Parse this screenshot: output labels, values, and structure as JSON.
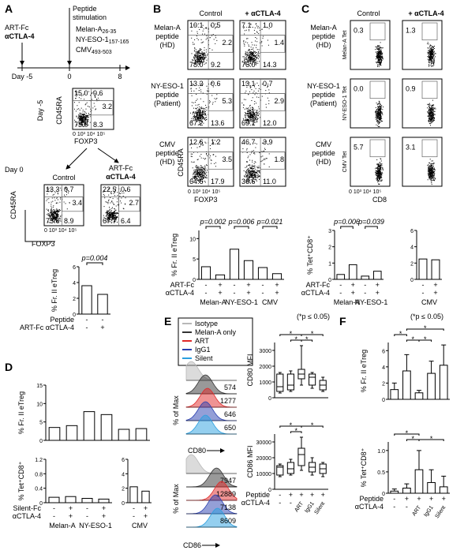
{
  "figure": {
    "letters": [
      "A",
      "B",
      "C",
      "D",
      "E",
      "F"
    ],
    "A": {
      "left_labels": [
        "ART-Fc",
        "αCTLA-4"
      ],
      "stim": [
        "Peptide",
        "stimulation"
      ],
      "peptides": [
        {
          "name": "Melan-A",
          "sub": "26-35"
        },
        {
          "name": "NY-ESO-1",
          "sub": "157-165"
        },
        {
          "name": "CMV",
          "sub": "493-503"
        }
      ],
      "days": [
        "Day -5",
        "0",
        "8"
      ],
      "day5_label": "Day -5",
      "day0_label": "Day 0",
      "plot_heads": [
        "Control",
        "ART-Fc",
        "αCTLA-4"
      ],
      "plots": [
        [
          "15.0",
          "0.6",
          "3.2",
          "73.0",
          "8.3"
        ],
        [
          "13.3",
          "0.7",
          "3.4",
          "73.6",
          "8.9"
        ],
        [
          "22.5",
          "0.6",
          "2.7",
          "67.7",
          "6.4"
        ]
      ],
      "y_axis": "CD45RA",
      "x_axis": "FOXP3",
      "axis_ticks": "0 10³ 10⁴ 10⁵"
    },
    "B": {
      "heads": [
        "Control",
        "+ αCTLA-4"
      ],
      "rows": [
        [
          "Melan-A",
          "peptide",
          "(HD)"
        ],
        [
          "NY-ESO-1",
          "peptide",
          "(Patient)"
        ],
        [
          "CMV",
          "peptide",
          "(HD)"
        ]
      ],
      "plots": [
        [
          [
            "10.1",
            "0.5",
            "2.2",
            "78.0",
            "9.2"
          ],
          [
            "7.1",
            "1.0",
            "1.4",
            "76.0",
            "14.3"
          ]
        ],
        [
          [
            "13.2",
            "0.6",
            "5.3",
            "67.2",
            "13.6"
          ],
          [
            "13.1",
            "0.7",
            "2.9",
            "69.1",
            "12.0"
          ]
        ],
        [
          [
            "12.6",
            "1.2",
            "3.5",
            "64.6",
            "17.9"
          ],
          [
            "46.7",
            "3.9",
            "1.8",
            "36.6",
            "11.0"
          ]
        ]
      ],
      "y_axis": "CD45RA",
      "x_axis": "FOXP3",
      "axis_ticks": "0 10³ 10⁴ 10⁵"
    },
    "C": {
      "heads": [
        "Control",
        "+ αCTLA-4"
      ],
      "rows": [
        [
          "Melan-A",
          "peptide",
          "(HD)"
        ],
        [
          "NY-ESO-1",
          "peptide",
          "(Patient)"
        ],
        [
          "CMV",
          "peptide",
          "(HD)"
        ]
      ],
      "plots": [
        [
          "0.3",
          "1.3"
        ],
        [
          "0.0",
          "0.9"
        ],
        [
          "5.7",
          "3.1"
        ]
      ],
      "y_axes": [
        "Melan-A Tet",
        "NY-ESO-1 Tet",
        "CMV Tet"
      ],
      "x_axis": "CD8",
      "axis_ticks": "0 10³ 10⁴ 10⁵"
    },
    "E": {
      "legend": [
        {
          "name": "Isotype",
          "color": "#b8b8b8"
        },
        {
          "name": "Melan-A only",
          "color": "#333333"
        },
        {
          "name": "ART",
          "color": "#e02828"
        },
        {
          "name": "IgG1",
          "color": "#2a3fb0"
        },
        {
          "name": "Silent",
          "color": "#2a9fe0"
        }
      ],
      "hist_y": "% of Max",
      "cd80": [
        "574",
        "1277",
        "646",
        "650"
      ],
      "cd86": [
        "7947",
        "12889",
        "7138",
        "8609"
      ],
      "cd80_axis": "CD80",
      "cd86_axis": "CD86",
      "note": "(*p ≤ 0.05)"
    },
    "F": {
      "note": "(*p ≤ 0.05)"
    }
  },
  "chart_data": [
    {
      "type": "bar",
      "y_label": "% Fr. II eTreg",
      "values": [
        3.6,
        2.5
      ],
      "color": "#ffffff",
      "ylim": [
        0,
        6
      ],
      "yticks": [
        0,
        2,
        4,
        6
      ],
      "annotations": [
        "p=0.004"
      ],
      "rows": [
        {
          "name": "Peptide",
          "marks": [
            "-",
            "-"
          ]
        },
        {
          "name": "ART-Fc αCTLA-4",
          "marks": [
            "-",
            "+"
          ]
        }
      ]
    },
    {
      "type": "bar",
      "y_label": "% Fr. II eTreg",
      "values": [
        3.1,
        1.1,
        7.4,
        4.6,
        2.9,
        1.4
      ],
      "color": "#ffffff",
      "ylim": [
        0,
        12
      ],
      "yticks": [
        0,
        5,
        10
      ],
      "annotations": [
        "p=0.002",
        "p=0.006",
        "p=0.021"
      ],
      "rows": [
        {
          "name": "ART-Fc",
          "marks": [
            "-",
            "+",
            "-",
            "+",
            "-",
            "+"
          ]
        },
        {
          "name": "αCTLA-4",
          "marks": [
            "-",
            "+",
            "-",
            "+",
            "-",
            "+"
          ]
        }
      ],
      "groups": [
        "Melan-A",
        "NY-ESO-1",
        "CMV"
      ]
    },
    {
      "type": "bar",
      "y_label": "% Tet⁺CD8⁺",
      "values": [
        0.3,
        0.9,
        0.2,
        0.5
      ],
      "color": "#ffffff",
      "ylim": [
        0,
        3
      ],
      "yticks": [
        0,
        1,
        2,
        3
      ],
      "annotations": [
        "p=0.006",
        "p=0.039"
      ],
      "rows": [
        {
          "name": "ART-Fc",
          "marks": [
            "-",
            "+",
            "-",
            "+"
          ]
        },
        {
          "name": "αCTLA-4",
          "marks": [
            "-",
            "+",
            "-",
            "+"
          ]
        }
      ],
      "groups": [
        "Melan-A",
        "NY-ESO-1"
      ]
    },
    {
      "type": "bar",
      "values": [
        2.5,
        2.4
      ],
      "color": "#ffffff",
      "ylim": [
        0,
        6
      ],
      "yticks": [
        0,
        2,
        4,
        6
      ],
      "rows": [
        {
          "marks": [
            "-",
            "+"
          ]
        },
        {
          "marks": [
            "-",
            "+"
          ]
        }
      ],
      "groups": [
        "CMV"
      ]
    },
    {
      "type": "bar",
      "y_label": "% Fr. II eTreg",
      "values": [
        3.5,
        4.0,
        7.8,
        7.0,
        3.0,
        3.2
      ],
      "color": "#ffffff",
      "ylim": [
        0,
        15
      ],
      "yticks": [
        0,
        5,
        10,
        15
      ]
    },
    {
      "type": "bar",
      "y_label": "% Tet⁺CD8⁺",
      "values": [
        0.15,
        0.17,
        0.12,
        0.1
      ],
      "color": "#ffffff",
      "ylim": [
        0,
        1.2
      ],
      "yticks": [
        0,
        0.4,
        0.8,
        1.2
      ],
      "rows": [
        {
          "name": "Silent-Fc",
          "marks": [
            "-",
            "+",
            "-",
            "+"
          ]
        },
        {
          "name": "αCTLA-4",
          "marks": [
            "-",
            "+",
            "-",
            "+"
          ]
        }
      ],
      "groups": [
        "Melan-A",
        "NY-ESO-1"
      ]
    },
    {
      "type": "bar",
      "values": [
        2.2,
        1.6
      ],
      "color": "#ffffff",
      "ylim": [
        0,
        6
      ],
      "yticks": [
        0,
        2,
        4,
        6
      ],
      "rows": [
        {
          "marks": [
            "-",
            "+"
          ]
        },
        {
          "marks": [
            "-",
            "+"
          ]
        }
      ],
      "groups": [
        "CMV"
      ]
    },
    {
      "type": "box",
      "y_label": "CD80 MFI",
      "color": "#ffffff",
      "ylim": [
        0,
        3500
      ],
      "yticks": [
        0,
        1000,
        2000,
        3000
      ],
      "sig_mark": "*",
      "boxes": [
        [
          300,
          400,
          700,
          1500,
          1600
        ],
        [
          400,
          500,
          800,
          1500,
          1700
        ],
        [
          800,
          1200,
          1500,
          1800,
          3300
        ],
        [
          600,
          800,
          1300,
          1500,
          1600
        ],
        [
          400,
          500,
          800,
          1100,
          1300
        ]
      ]
    },
    {
      "type": "box",
      "y_label": "CD86 MFI",
      "color": "#ffffff",
      "ylim": [
        0,
        35000
      ],
      "yticks": [
        0,
        10000,
        20000,
        30000
      ],
      "sig_mark": "*",
      "boxes": [
        [
          8000,
          9000,
          14000,
          15000,
          16000
        ],
        [
          9000,
          10000,
          13000,
          17000,
          19000
        ],
        [
          12000,
          15000,
          22000,
          26000,
          33000
        ],
        [
          9000,
          11000,
          14000,
          17000,
          20000
        ],
        [
          8000,
          10000,
          13000,
          16000,
          17000
        ]
      ],
      "rows": [
        {
          "name": "Peptide",
          "marks": [
            "-",
            "+",
            "+",
            "+",
            "+"
          ]
        },
        {
          "name": "αCTLA-4",
          "marks": [
            "-",
            "-",
            "ART",
            "IgG1",
            "Silent"
          ]
        }
      ]
    },
    {
      "type": "bar",
      "y_label": "% Fr. II eTreg",
      "values": [
        1.2,
        3.5,
        0.8,
        3.2,
        4.2
      ],
      "errors": [
        0.8,
        2.0,
        0.3,
        1.5,
        2.5
      ],
      "color": "#ffffff",
      "ylim": [
        0,
        7
      ],
      "yticks": [
        0,
        2,
        4,
        6
      ],
      "sig_mark": "*"
    },
    {
      "type": "bar",
      "y_label": "% Tet⁺CD8⁺",
      "values": [
        0.05,
        0.12,
        0.55,
        0.25,
        0.15
      ],
      "errors": [
        0.05,
        0.1,
        0.45,
        0.3,
        0.25
      ],
      "color": "#ffffff",
      "ylim": [
        0,
        1.2
      ],
      "yticks": [
        0,
        0.5,
        {
          "value": 1,
          "label": "1.0"
        }
      ],
      "sig_mark": "*",
      "rows": [
        {
          "name": "Peptide",
          "marks": [
            "-",
            "+",
            "+",
            "+",
            "+"
          ]
        },
        {
          "name": "αCTLA-4",
          "marks": [
            "-",
            "-",
            "ART",
            "IgG1",
            "Silent"
          ]
        }
      ]
    }
  ]
}
